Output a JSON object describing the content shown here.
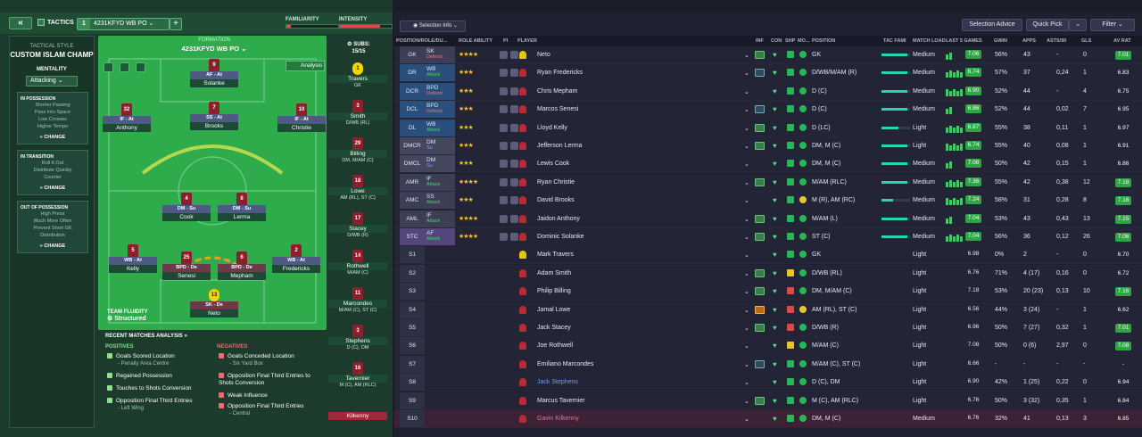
{
  "header": {
    "back": "«",
    "tactics": "TACTICS",
    "formation_num": "1",
    "formation": "4231KFYD WB PO",
    "add": "+",
    "familiarity": "FAMILIARITY",
    "intensity": "INTENSITY"
  },
  "style_panel": {
    "title": "TACTICAL STYLE",
    "name": "CUSTOM ISLAM CHAMP",
    "mentality_label": "MENTALITY",
    "mentality": "Attacking",
    "in_possession": {
      "title": "IN POSSESSION",
      "items": [
        "Shorter Passing",
        "Pass Into Space",
        "Low Crosses",
        "Higher Tempo"
      ],
      "change": "CHANGE"
    },
    "in_transition": {
      "title": "IN TRANSITION",
      "items": [
        "Roll It Out",
        "Distribute Quickly",
        "Counter"
      ],
      "change": "CHANGE"
    },
    "out_possession": {
      "title": "OUT OF POSSESSION",
      "items": [
        "High Press",
        "Much More Often",
        "Prevent Short GK",
        "Distribution"
      ],
      "change": "CHANGE"
    }
  },
  "pitch": {
    "formation_label": "FORMATION",
    "formation": "4231KFYD WB PO",
    "analysis": "Analysis",
    "fluidity_label": "TEAM FLUIDITY",
    "fluidity": "Structured",
    "players": [
      {
        "num": "9",
        "role": "AF - At",
        "name": "Solanke"
      },
      {
        "num": "32",
        "role": "IF - At",
        "name": "Anthony"
      },
      {
        "num": "7",
        "role": "SS - At",
        "name": "Brooks"
      },
      {
        "num": "10",
        "role": "IF - At",
        "name": "Christie"
      },
      {
        "num": "4",
        "role": "DM - Su",
        "name": "Cook"
      },
      {
        "num": "8",
        "role": "DM - Su",
        "name": "Lerma"
      },
      {
        "num": "5",
        "role": "WB - At",
        "name": "Kelly"
      },
      {
        "num": "25",
        "role": "BPD - De",
        "name": "Senesi"
      },
      {
        "num": "6",
        "role": "BPD - De",
        "name": "Mepham"
      },
      {
        "num": "2",
        "role": "WB - At",
        "name": "Fredericks"
      },
      {
        "num": "13",
        "role": "SK - De",
        "name": "Neto"
      }
    ]
  },
  "subs": {
    "title": "SUBS:",
    "count": "15/15",
    "list": [
      {
        "num": "1",
        "name": "Travers",
        "pos": "GK"
      },
      {
        "num": "3",
        "name": "Smith",
        "pos": "D/WB (RL)"
      },
      {
        "num": "29",
        "name": "Billing",
        "pos": "DM, M/AM (C)"
      },
      {
        "num": "18",
        "name": "Lowe",
        "pos": "AM (RL), ST (C)"
      },
      {
        "num": "17",
        "name": "Stacey",
        "pos": "D/WB (R)"
      },
      {
        "num": "14",
        "name": "Rothwell",
        "pos": "M/AM (C)"
      },
      {
        "num": "11",
        "name": "Marcondes",
        "pos": "M/AM (C), ST (C)"
      },
      {
        "num": "3",
        "name": "Stephens",
        "pos": "D (C), DM"
      },
      {
        "num": "16",
        "name": "Tavernier",
        "pos": "M (C), AM (RLC)"
      },
      {
        "num": "",
        "name": "Kilkenny",
        "pos": ""
      }
    ]
  },
  "analysis": {
    "title": "RECENT MATCHES ANALYSIS",
    "positives_label": "POSITIVES",
    "negatives_label": "NEGATIVES",
    "positives": [
      {
        "t": "Goals Scored Location",
        "s": "- Penalty Area Centre"
      },
      {
        "t": "Regained Possession",
        "s": ""
      },
      {
        "t": "Touches to Shots Conversion",
        "s": ""
      },
      {
        "t": "Opposition Final Third Entries",
        "s": "- Left Wing"
      }
    ],
    "negatives": [
      {
        "t": "Goals Conceded Location",
        "s": "- Six Yard Box"
      },
      {
        "t": "Opposition Final Third Entries to Shots Conversion",
        "s": ""
      },
      {
        "t": "Weak Influence",
        "s": ""
      },
      {
        "t": "Opposition Final Third Entries",
        "s": "- Central"
      }
    ]
  },
  "right": {
    "selection_info": "Selection Info",
    "selection_advice": "Selection Advice",
    "quick_pick": "Quick Pick",
    "filter": "Filter",
    "columns": [
      "POSITION/ROLE/DU...",
      "ROLE ABILITY",
      "PI",
      "PLAYER",
      "INF",
      "CON",
      "SHP",
      "MO...",
      "POSITION",
      "TAC FAMI",
      "MATCH LOAD",
      "LAST 5 GAMES",
      "GWIN",
      "APPS",
      "ASTS/90",
      "GLS",
      "AV RAT"
    ],
    "rows": [
      {
        "slot": "GK",
        "role": "SK",
        "duty": "Defend",
        "dc": "def",
        "stars": "★★★★",
        "name": "Neto",
        "inf": "Tri",
        "pos": "GK",
        "load": "Medium",
        "tf": 0.9,
        "r": "7.06",
        "gwin": "56%",
        "apps": "43",
        "asts": "-",
        "gls": "0",
        "av": "7.01",
        "gk": true
      },
      {
        "slot": "DR",
        "role": "WB",
        "duty": "Attack",
        "dc": "att",
        "stars": "★★★",
        "name": "Ryan Fredericks",
        "inf": "PR",
        "pos": "D/WB/M/AM (R)",
        "load": "Medium",
        "tf": 0.9,
        "r": "6.74",
        "gwin": "57%",
        "apps": "37",
        "asts": "0,24",
        "gls": "1",
        "av": "6.83"
      },
      {
        "slot": "DCR",
        "role": "BPD",
        "duty": "Defend",
        "dc": "def",
        "stars": "★★★",
        "name": "Chris Mepham",
        "inf": "",
        "pos": "D (C)",
        "load": "Medium",
        "tf": 0.9,
        "r": "6.90",
        "gwin": "52%",
        "apps": "44",
        "asts": "-",
        "gls": "4",
        "av": "6.75"
      },
      {
        "slot": "DCL",
        "role": "BPD",
        "duty": "Defend",
        "dc": "def",
        "stars": "★★★",
        "name": "Marcos Senesi",
        "inf": "PR",
        "pos": "D (C)",
        "load": "Medium",
        "tf": 0.9,
        "r": "6.86",
        "gwin": "52%",
        "apps": "44",
        "asts": "0,02",
        "gls": "7",
        "av": "6.95"
      },
      {
        "slot": "DL",
        "role": "WB",
        "duty": "Attack",
        "dc": "att",
        "stars": "★★★",
        "name": "Lloyd Kelly",
        "inf": "Ago",
        "pos": "D (LC)",
        "load": "Light",
        "tf": 0.6,
        "r": "6.87",
        "gwin": "55%",
        "apps": "38",
        "asts": "0,11",
        "gls": "1",
        "av": "6.97"
      },
      {
        "slot": "DMCR",
        "role": "DM",
        "duty": "Su",
        "dc": "sup",
        "stars": "★★★",
        "name": "Jefferson Lerma",
        "inf": "Bril",
        "pos": "DM, M (C)",
        "load": "Light",
        "tf": 0.9,
        "r": "6.74",
        "gwin": "55%",
        "apps": "40",
        "asts": "0,08",
        "gls": "1",
        "av": "6.91"
      },
      {
        "slot": "DMCL",
        "role": "DM",
        "duty": "Su",
        "dc": "sup",
        "stars": "★★★",
        "name": "Lewis Cook",
        "inf": "",
        "pos": "DM, M (C)",
        "load": "Medium",
        "tf": 0.9,
        "r": "7.08",
        "gwin": "50%",
        "apps": "42",
        "asts": "0,15",
        "gls": "1",
        "av": "6.86"
      },
      {
        "slot": "AMR",
        "role": "IF",
        "duty": "Attack",
        "dc": "att",
        "stars": "★★★★",
        "name": "Ryan Christie",
        "inf": "Bril",
        "pos": "M/AM (RLC)",
        "load": "Medium",
        "tf": 0.9,
        "r": "7.36",
        "gwin": "55%",
        "apps": "42",
        "asts": "0,38",
        "gls": "12",
        "av": "7.18"
      },
      {
        "slot": "AMC",
        "role": "SS",
        "duty": "Attack",
        "dc": "att",
        "stars": "★★★",
        "name": "David Brooks",
        "inf": "",
        "pos": "M (R), AM (RC)",
        "load": "Medium",
        "tf": 0.4,
        "r": "7.24",
        "gwin": "58%",
        "apps": "31",
        "asts": "0,28",
        "gls": "8",
        "av": "7.16"
      },
      {
        "slot": "AML",
        "role": "IF",
        "duty": "Attack",
        "dc": "att",
        "stars": "★★★★",
        "name": "Jaidon Anthony",
        "inf": "Bril",
        "pos": "M/AM (L)",
        "load": "Medium",
        "tf": 0.9,
        "r": "7.04",
        "gwin": "53%",
        "apps": "43",
        "asts": "0,43",
        "gls": "13",
        "av": "7.15"
      },
      {
        "slot": "STC",
        "role": "AF",
        "duty": "Attack",
        "dc": "att",
        "stars": "★★★★",
        "name": "Dominic Solanke",
        "inf": "Vry",
        "pos": "ST (C)",
        "load": "Medium",
        "tf": 0.9,
        "r": "7.04",
        "gwin": "56%",
        "apps": "36",
        "asts": "0,12",
        "gls": "26",
        "av": "7.06"
      },
      {
        "slot": "S1",
        "name": "Mark Travers",
        "pos": "GK",
        "load": "Light",
        "r": "6.98",
        "gwin": "0%",
        "apps": "2",
        "asts": "-",
        "gls": "0",
        "av": "6.70",
        "gk": true
      },
      {
        "slot": "S2",
        "name": "Adam Smith",
        "inf": "Lvl",
        "pos": "D/WB (RL)",
        "load": "Light",
        "r": "6.76",
        "gwin": "71%",
        "apps": "4 (17)",
        "asts": "0,16",
        "gls": "0",
        "av": "6.72"
      },
      {
        "slot": "S3",
        "name": "Philip Billing",
        "inf": "Vry",
        "pos": "DM, M/AM (C)",
        "load": "Light",
        "r": "7.18",
        "gwin": "53%",
        "apps": "20 (23)",
        "asts": "0,13",
        "gls": "10",
        "av": "7.16"
      },
      {
        "slot": "S4",
        "name": "Jamal Lowe",
        "inf": "Inj",
        "pos": "AM (RL), ST (C)",
        "load": "Light",
        "r": "6.56",
        "gwin": "44%",
        "apps": "3 (24)",
        "asts": "-",
        "gls": "1",
        "av": "6.62"
      },
      {
        "slot": "S5",
        "name": "Jack Stacey",
        "inf": "Wtk",
        "pos": "D/WB (R)",
        "load": "Light",
        "r": "6.96",
        "gwin": "50%",
        "apps": "7 (27)",
        "asts": "0,32",
        "gls": "1",
        "av": "7.01"
      },
      {
        "slot": "S6",
        "name": "Joe Rothwell",
        "pos": "M/AM (C)",
        "load": "Light",
        "r": "7.08",
        "gwin": "50%",
        "apps": "0 (6)",
        "asts": "2,97",
        "gls": "0",
        "av": "7.08"
      },
      {
        "slot": "S7",
        "name": "Emiliano Marcondes",
        "inf": "PR",
        "pos": "M/AM (C), ST (C)",
        "load": "Light",
        "r": "6.66",
        "gwin": "-",
        "apps": "-",
        "asts": "-",
        "gls": "-",
        "av": "-"
      },
      {
        "slot": "S8",
        "name": "Jack Stephens",
        "pos": "D (C), DM",
        "load": "Light",
        "r": "6.90",
        "gwin": "42%",
        "apps": "1 (25)",
        "asts": "0,22",
        "gls": "0",
        "av": "6.94",
        "blue": true
      },
      {
        "slot": "S9",
        "name": "Marcus Tavernier",
        "inf": "Ago",
        "pos": "M (C), AM (RLC)",
        "load": "Light",
        "r": "6.76",
        "gwin": "50%",
        "apps": "3 (32)",
        "asts": "0,35",
        "gls": "1",
        "av": "6.84"
      },
      {
        "slot": "S10",
        "name": "Gavin Kilkenny",
        "pos": "DM, M (C)",
        "load": "Medium",
        "r": "6.76",
        "gwin": "32%",
        "apps": "41",
        "asts": "0,13",
        "gls": "3",
        "av": "6.85",
        "hl": true
      }
    ]
  }
}
